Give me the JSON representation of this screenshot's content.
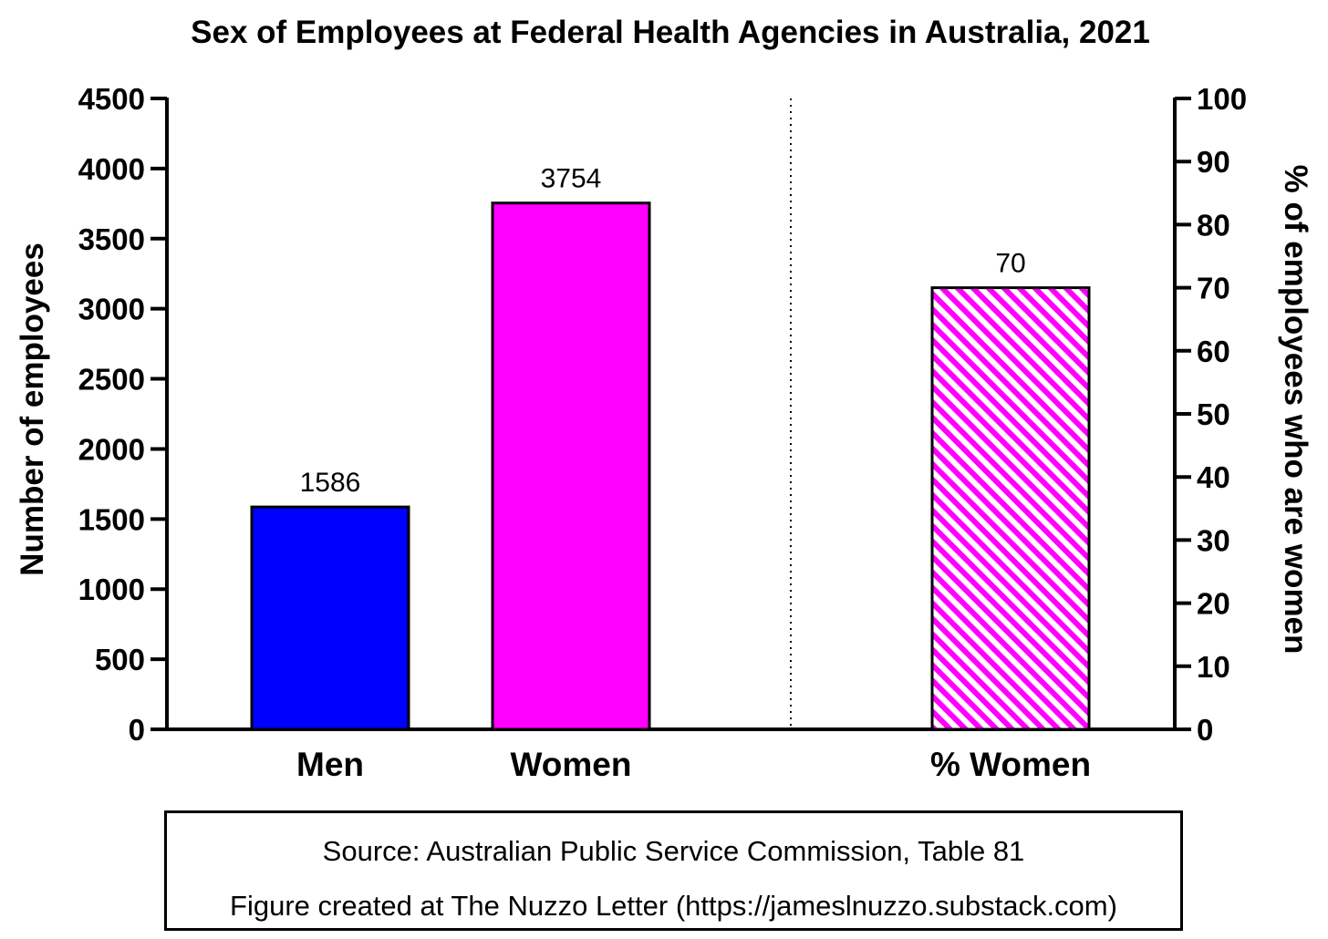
{
  "chart_data": {
    "type": "bar",
    "title": "Sex of Employees at Federal Health Agencies in Australia, 2021",
    "left_axis": {
      "label": "Number of employees",
      "ylim": [
        0,
        4500
      ],
      "ticks": [
        "0",
        "500",
        "1000",
        "1500",
        "2000",
        "2500",
        "3000",
        "3500",
        "4000",
        "4500"
      ]
    },
    "right_axis": {
      "label": "% of employees who are women",
      "ylim": [
        0,
        100
      ],
      "ticks": [
        "0",
        "10",
        "20",
        "30",
        "40",
        "50",
        "60",
        "70",
        "80",
        "90",
        "100"
      ]
    },
    "categories": [
      "Men",
      "Women",
      "% Women"
    ],
    "bars": [
      {
        "category": "Men",
        "value": 1586,
        "label": "1586",
        "axis": "left",
        "color": "#0000ff",
        "pattern": "solid"
      },
      {
        "category": "Women",
        "value": 3754,
        "label": "3754",
        "axis": "left",
        "color": "#ff00ff",
        "pattern": "solid"
      },
      {
        "category": "% Women",
        "value": 70,
        "label": "70",
        "axis": "right",
        "color": "#ff00ff",
        "pattern": "diagonal-hatch"
      }
    ],
    "separator": "dotted"
  },
  "source": {
    "line1": "Source: Australian Public Service Commission, Table 81",
    "line2": "Figure created at The Nuzzo Letter (https://jameslnuzzo.substack.com)"
  }
}
